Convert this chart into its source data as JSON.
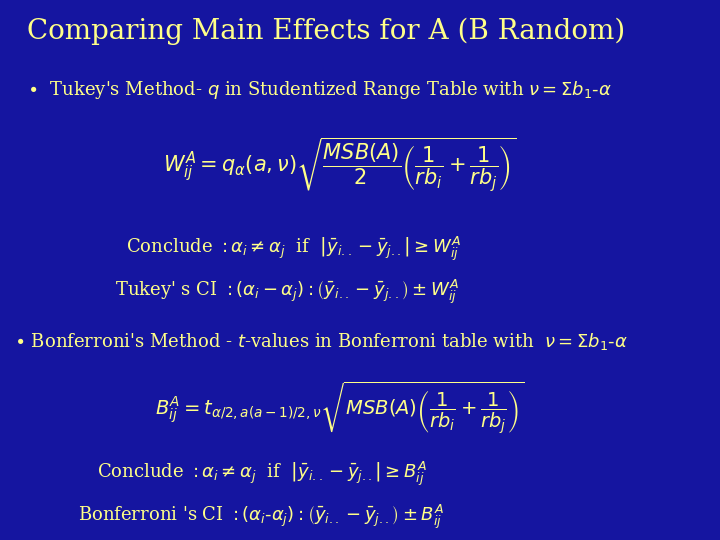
{
  "bg_color": "#1515a0",
  "text_color": "#ffff88",
  "title_fontsize": 20,
  "body_fontsize": 13,
  "math_fontsize": 14,
  "figsize": [
    7.2,
    5.4
  ],
  "dpi": 100,
  "title": "Comparing Main Effects for A (B Random)",
  "bullet1": "Tukey’s Method- $q$ in Studentized Range Table with $\\nu = \\Sigma b_1\\text{-}\\alpha$",
  "tukey_formula": "$W^A_{ij} = q_{\\alpha}(a,\\nu)\\sqrt{\\dfrac{MSB(A)}{2}\\left(\\dfrac{1}{rb_i}+\\dfrac{1}{rb_j}\\right)}$",
  "tukey_conclude": "Conclude $:\\alpha_i \\neq \\alpha_j$  if  $\\left|\\bar{y}_{i..} - \\bar{y}_{j..}\\right| \\geq W^A_{ij}$",
  "tukey_ci": "Tukey' s CI $:(\\alpha_i - \\alpha_j):\\left(\\bar{y}_{i..} - \\bar{y}_{j..}\\right) \\pm W^A_{ij}$",
  "bullet2": "Bonferroni’s Method - $t$-values in Bonferroni table with  $\\nu = \\Sigma b_1\\text{-}\\alpha$",
  "bonf_formula": "$B^A_{ij} = t_{\\alpha/2,a(a-1)/2,\\nu}\\sqrt{MSB(A)\\left(\\dfrac{1}{rb_i}+\\dfrac{1}{rb_j}\\right)}$",
  "bonf_conclude": "Conclude $: \\alpha_i \\neq \\alpha_j$  if  $\\left|\\bar{y}_{i..} - \\bar{y}_{j..}\\right| \\geq B^A_{ij}$",
  "bonf_ci": "Bonferroni 's CI $:(\\alpha_i\\text{-}\\alpha_j):\\left(\\bar{y}_{i..} - \\bar{y}_{j..}\\right) \\pm B^A_{ij}$"
}
